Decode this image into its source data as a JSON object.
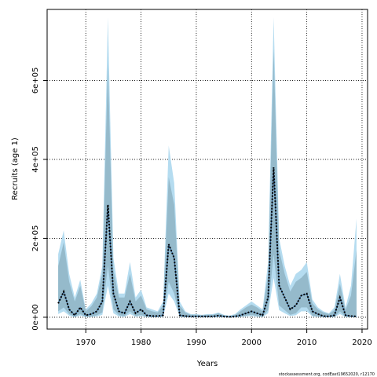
{
  "chart_data": {
    "type": "line",
    "xlabel": "Years",
    "ylabel": "Recruits (age 1)",
    "xlim": [
      1963,
      2021
    ],
    "ylim": [
      -30000,
      780000
    ],
    "x_ticks": [
      1970,
      1980,
      1990,
      2000,
      2010,
      2020
    ],
    "y_ticks": [
      0,
      200000,
      400000,
      600000
    ],
    "y_tick_labels": [
      "0e+00",
      "2e+05",
      "4e+05",
      "6e+05"
    ],
    "grid": "dotted",
    "credit": "stockassessment.org, codEast19652020, r12170",
    "colors": {
      "outer_band": "#b5dcf0",
      "inner_band": "#8fb4c4",
      "estimate": "#000000",
      "mid_line": "#1f5a9e"
    },
    "x": [
      1965,
      1966,
      1967,
      1968,
      1969,
      1970,
      1971,
      1972,
      1973,
      1974,
      1975,
      1976,
      1977,
      1978,
      1979,
      1980,
      1981,
      1982,
      1983,
      1984,
      1985,
      1986,
      1987,
      1988,
      1989,
      1990,
      1991,
      1992,
      1993,
      1994,
      1995,
      1996,
      1997,
      1998,
      1999,
      2000,
      2001,
      2002,
      2003,
      2004,
      2005,
      2006,
      2007,
      2008,
      2009,
      2010,
      2011,
      2012,
      2013,
      2014,
      2015,
      2016,
      2017,
      2018,
      2019
    ],
    "series": [
      {
        "name": "",
        "role": "estimate",
        "values": [
          35000,
          65000,
          20000,
          5000,
          25000,
          5000,
          8000,
          15000,
          40000,
          285000,
          60000,
          15000,
          10000,
          40000,
          10000,
          20000,
          5000,
          3000,
          3000,
          5000,
          185000,
          150000,
          5000,
          3000,
          2000,
          2000,
          2000,
          2000,
          2000,
          4000,
          2000,
          1000,
          2000,
          5000,
          10000,
          15000,
          10000,
          5000,
          50000,
          380000,
          80000,
          50000,
          20000,
          30000,
          55000,
          60000,
          15000,
          8000,
          3000,
          2000,
          5000,
          50000,
          5000,
          3000,
          2000
        ]
      },
      {
        "name": "",
        "role": "upper_outer",
        "values": [
          160000,
          220000,
          110000,
          50000,
          95000,
          20000,
          35000,
          60000,
          130000,
          760000,
          150000,
          60000,
          60000,
          140000,
          50000,
          70000,
          25000,
          20000,
          15000,
          40000,
          435000,
          340000,
          40000,
          15000,
          8000,
          8000,
          6000,
          8000,
          8000,
          12000,
          6000,
          4000,
          8000,
          20000,
          30000,
          40000,
          30000,
          20000,
          140000,
          760000,
          200000,
          130000,
          80000,
          110000,
          120000,
          140000,
          45000,
          25000,
          15000,
          10000,
          25000,
          110000,
          25000,
          80000,
          250000
        ]
      },
      {
        "name": "",
        "role": "upper_inner",
        "values": [
          130000,
          190000,
          90000,
          40000,
          80000,
          15000,
          28000,
          50000,
          110000,
          640000,
          120000,
          50000,
          50000,
          110000,
          40000,
          55000,
          20000,
          15000,
          12000,
          30000,
          355000,
          285000,
          30000,
          12000,
          6000,
          6000,
          5000,
          6000,
          6000,
          10000,
          5000,
          3000,
          6000,
          15000,
          25000,
          32000,
          25000,
          15000,
          110000,
          680000,
          170000,
          110000,
          65000,
          90000,
          100000,
          115000,
          35000,
          20000,
          12000,
          8000,
          18000,
          85000,
          18000,
          55000,
          170000
        ]
      },
      {
        "name": "",
        "role": "lower_inner",
        "values": [
          15000,
          25000,
          8000,
          1000,
          8000,
          1000,
          2000,
          5000,
          12000,
          130000,
          20000,
          5000,
          3000,
          15000,
          3000,
          6000,
          1000,
          500,
          500,
          1000,
          90000,
          60000,
          1000,
          500,
          300,
          300,
          300,
          300,
          300,
          800,
          300,
          100,
          300,
          1500,
          4000,
          6000,
          3000,
          1000,
          18000,
          160000,
          30000,
          18000,
          6000,
          10000,
          25000,
          25000,
          4000,
          2000,
          500,
          300,
          1000,
          15000,
          1000,
          300,
          100
        ]
      },
      {
        "name": "",
        "role": "lower_outer",
        "values": [
          8000,
          15000,
          4000,
          500,
          4000,
          500,
          1000,
          2000,
          6000,
          80000,
          10000,
          2000,
          1000,
          8000,
          1500,
          3000,
          500,
          200,
          200,
          500,
          60000,
          40000,
          500,
          200,
          100,
          100,
          100,
          100,
          100,
          300,
          100,
          50,
          100,
          800,
          2000,
          3000,
          1500,
          500,
          10000,
          100000,
          18000,
          10000,
          3000,
          5000,
          15000,
          15000,
          2000,
          1000,
          200,
          100,
          500,
          8000,
          500,
          100,
          50
        ]
      }
    ]
  }
}
